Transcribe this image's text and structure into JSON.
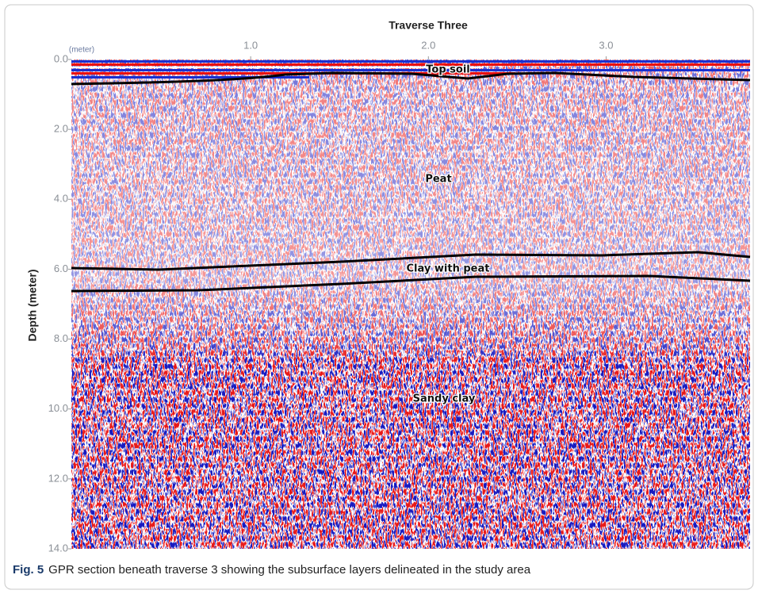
{
  "figure": {
    "title": "Traverse Three",
    "x_unit": "(meter)",
    "y_label": "Depth (meter)",
    "xlim": [
      0,
      3.81
    ],
    "xticks": [
      {
        "value": 1,
        "label": "1.0"
      },
      {
        "value": 2,
        "label": "2.0"
      },
      {
        "value": 3,
        "label": "3.0"
      }
    ],
    "ylim": [
      0,
      14
    ],
    "yticks": [
      {
        "value": 0,
        "label": "0.0"
      },
      {
        "value": 2,
        "label": "2.0"
      },
      {
        "value": 4,
        "label": "4.0"
      },
      {
        "value": 6,
        "label": "6.0"
      },
      {
        "value": 8,
        "label": "8.0"
      },
      {
        "value": 10,
        "label": "10.0"
      },
      {
        "value": 12,
        "label": "12.0"
      },
      {
        "value": 14,
        "label": "14.0"
      }
    ],
    "annotations": [
      "Top soil",
      "Peat",
      "Clay with peat",
      "Sandy clay"
    ],
    "caption": {
      "label": "Fig. 5",
      "text": "GPR section beneath traverse 3 showing the subsurface layers delineated in the study area"
    }
  }
}
